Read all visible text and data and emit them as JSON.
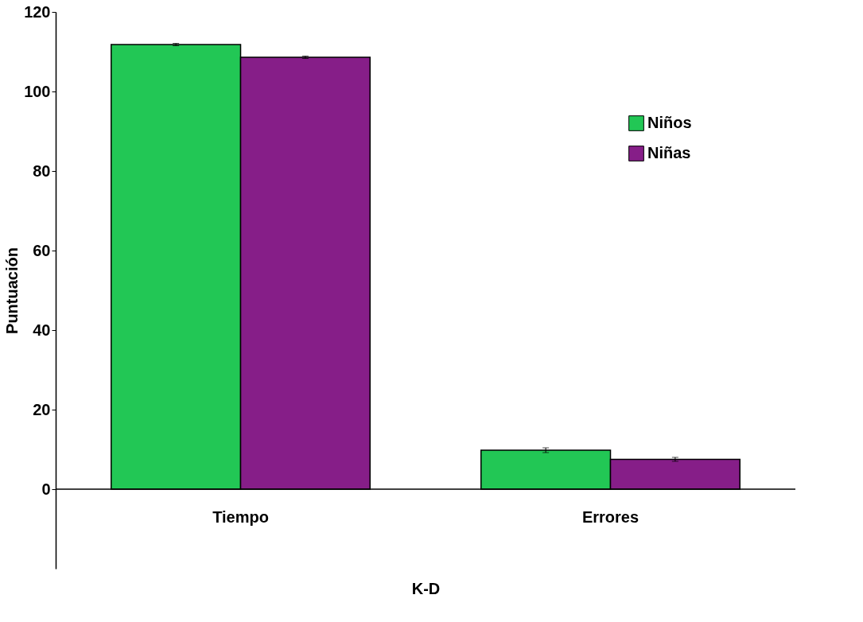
{
  "chart_data": {
    "type": "bar",
    "xlabel": "K-D",
    "ylabel": "Puntuación",
    "categories": [
      "Tiempo",
      "Errores"
    ],
    "series": [
      {
        "name": "Niños",
        "color": "#22c755",
        "values": [
          111.8,
          9.8
        ],
        "errors": [
          0.3,
          0.6
        ]
      },
      {
        "name": "Niñas",
        "color": "#861e88",
        "values": [
          108.6,
          7.5
        ],
        "errors": [
          0.3,
          0.5
        ]
      }
    ],
    "ylim": [
      -20,
      120
    ],
    "yticks": [
      0,
      20,
      40,
      60,
      80,
      100,
      120
    ],
    "grid": false,
    "legend": "top right"
  }
}
